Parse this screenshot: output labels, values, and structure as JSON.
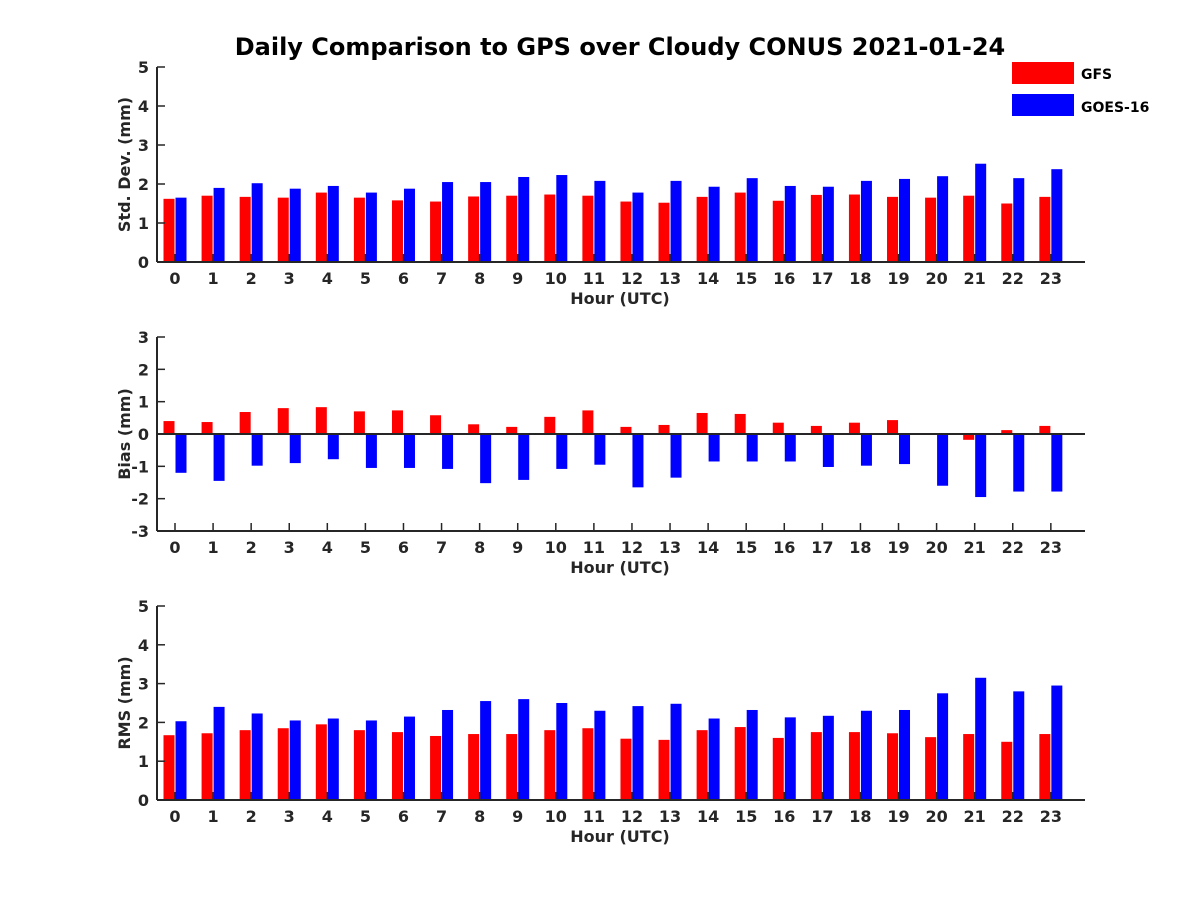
{
  "chart_data": {
    "type": "bar",
    "title": "Daily Comparison to GPS over Cloudy CONUS 2021-01-24",
    "legend": {
      "placement": "top-right",
      "entries": [
        {
          "name": "GFS",
          "color": "#ff0000"
        },
        {
          "name": "GOES-16",
          "color": "#0000ff"
        }
      ]
    },
    "categories": [
      "0",
      "1",
      "2",
      "3",
      "4",
      "5",
      "6",
      "7",
      "8",
      "9",
      "10",
      "11",
      "12",
      "13",
      "14",
      "15",
      "16",
      "17",
      "18",
      "19",
      "20",
      "21",
      "22",
      "23"
    ],
    "panels": [
      {
        "ylabel": "Std. Dev. (mm)",
        "xlabel": "Hour (UTC)",
        "ylim": [
          0,
          5
        ],
        "yticks": [
          0,
          1,
          2,
          3,
          4,
          5
        ],
        "series": [
          {
            "name": "GFS",
            "color": "#ff0000",
            "values": [
              1.62,
              1.7,
              1.67,
              1.65,
              1.78,
              1.65,
              1.58,
              1.55,
              1.68,
              1.7,
              1.73,
              1.7,
              1.55,
              1.52,
              1.67,
              1.78,
              1.57,
              1.72,
              1.73,
              1.67,
              1.65,
              1.7,
              1.5,
              1.67
            ]
          },
          {
            "name": "GOES-16",
            "color": "#0000ff",
            "values": [
              1.65,
              1.9,
              2.02,
              1.88,
              1.95,
              1.78,
              1.88,
              2.05,
              2.05,
              2.18,
              2.23,
              2.08,
              1.78,
              2.08,
              1.93,
              2.15,
              1.95,
              1.93,
              2.08,
              2.13,
              2.2,
              2.52,
              2.15,
              2.38
            ]
          }
        ]
      },
      {
        "ylabel": "Bias (mm)",
        "xlabel": "Hour (UTC)",
        "ylim": [
          -3,
          3
        ],
        "yticks": [
          -3,
          -2,
          -1,
          0,
          1,
          2,
          3
        ],
        "series": [
          {
            "name": "GFS",
            "color": "#ff0000",
            "values": [
              0.4,
              0.37,
              0.68,
              0.8,
              0.83,
              0.7,
              0.73,
              0.58,
              0.3,
              0.22,
              0.53,
              0.73,
              0.22,
              0.28,
              0.65,
              0.62,
              0.35,
              0.25,
              0.35,
              0.43,
              0.02,
              -0.18,
              0.12,
              0.25
            ]
          },
          {
            "name": "GOES-16",
            "color": "#0000ff",
            "values": [
              -1.2,
              -1.45,
              -0.98,
              -0.9,
              -0.78,
              -1.05,
              -1.05,
              -1.08,
              -1.52,
              -1.42,
              -1.08,
              -0.95,
              -1.65,
              -1.35,
              -0.85,
              -0.85,
              -0.85,
              -1.02,
              -0.98,
              -0.93,
              -1.6,
              -1.95,
              -1.78,
              -1.78
            ]
          }
        ]
      },
      {
        "ylabel": "RMS (mm)",
        "xlabel": "Hour (UTC)",
        "ylim": [
          0,
          5
        ],
        "yticks": [
          0,
          1,
          2,
          3,
          4,
          5
        ],
        "series": [
          {
            "name": "GFS",
            "color": "#ff0000",
            "values": [
              1.67,
              1.72,
              1.8,
              1.85,
              1.95,
              1.8,
              1.75,
              1.65,
              1.7,
              1.7,
              1.8,
              1.85,
              1.58,
              1.55,
              1.8,
              1.88,
              1.6,
              1.75,
              1.75,
              1.72,
              1.62,
              1.7,
              1.5,
              1.7
            ]
          },
          {
            "name": "GOES-16",
            "color": "#0000ff",
            "values": [
              2.03,
              2.4,
              2.23,
              2.05,
              2.1,
              2.05,
              2.15,
              2.32,
              2.55,
              2.6,
              2.5,
              2.3,
              2.42,
              2.48,
              2.1,
              2.32,
              2.13,
              2.17,
              2.3,
              2.32,
              2.75,
              3.15,
              2.8,
              2.95
            ]
          }
        ]
      }
    ]
  }
}
